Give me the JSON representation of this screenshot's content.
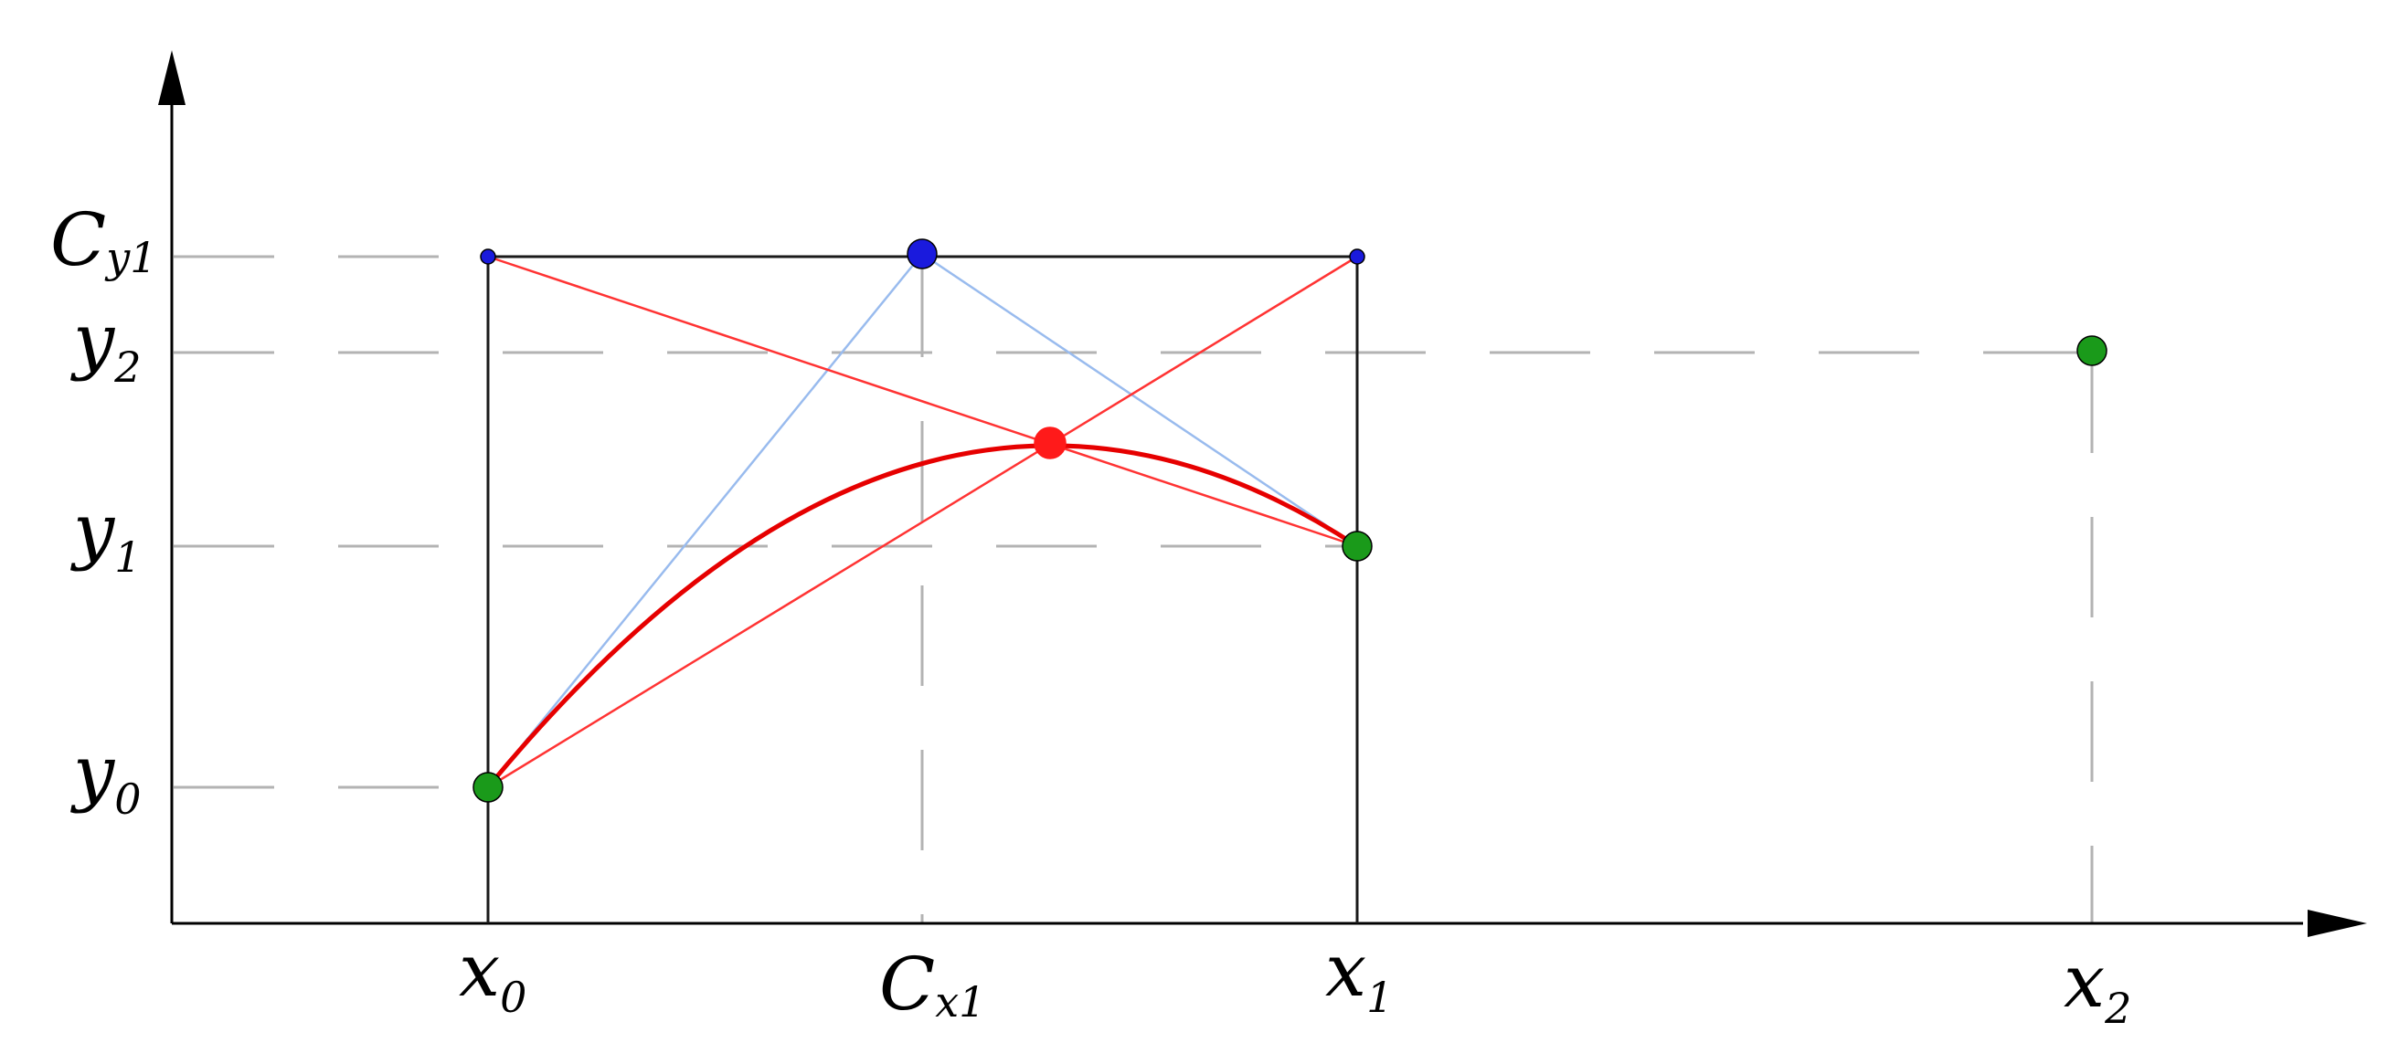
{
  "colors": {
    "axis": "#000000",
    "grid": "#b3b3b3",
    "box": "#1a1a1a",
    "curve": "#e60000",
    "red_line": "#ff3333",
    "blue_line": "#99bbee",
    "point_green": "#1a9a1a",
    "point_blue": "#1a1add",
    "point_red": "#ff1a1a"
  },
  "labels": {
    "x0": {
      "main": "x",
      "sub": "0"
    },
    "cx1": {
      "main": "C",
      "sub": "x1"
    },
    "x1": {
      "main": "x",
      "sub": "1"
    },
    "x2": {
      "main": "x",
      "sub": "2"
    },
    "cy1": {
      "main": "C",
      "sub": "y1"
    },
    "y2": {
      "main": "y",
      "sub": "2"
    },
    "y1": {
      "main": "y",
      "sub": "1"
    },
    "y0": {
      "main": "y",
      "sub": "0"
    }
  },
  "points": {
    "P0": {
      "x": 0,
      "y": 0,
      "color": "green"
    },
    "P1": {
      "x": 1,
      "y": 0.6,
      "color": "green"
    },
    "P2": {
      "x": 1.845,
      "y": 0.9,
      "color": "green"
    },
    "C1": {
      "x": 0.5,
      "y": 1.1,
      "color": "blue"
    },
    "curve_mid": {
      "x": 0.645,
      "y": 0.71,
      "color": "red"
    }
  }
}
